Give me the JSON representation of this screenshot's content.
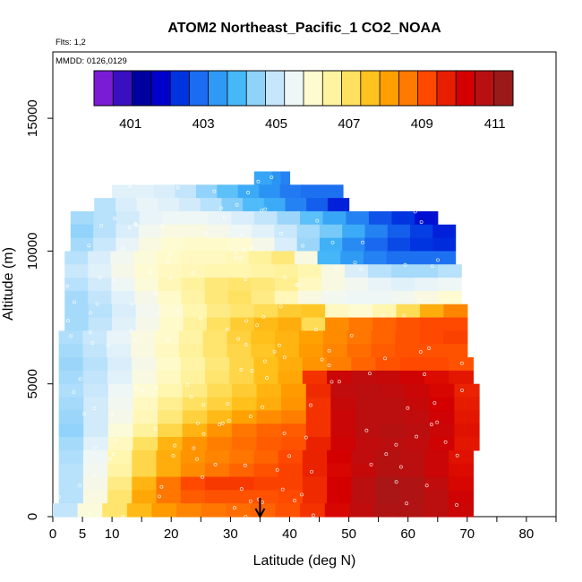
{
  "chart_data": {
    "type": "heatmap",
    "title": "ATOM2 Northeast_Pacific_1 CO2_NOAA",
    "flights_label": "Flts: 1,2",
    "date_label": "MMDD: 0126,0129",
    "xlabel": "Latitude (deg N)",
    "ylabel": "Altitude (m)",
    "xlim": [
      0,
      85
    ],
    "ylim": [
      0,
      17500
    ],
    "x_ticks": [
      0,
      5,
      10,
      20,
      30,
      40,
      50,
      60,
      70,
      80
    ],
    "y_ticks": [
      0,
      5000,
      10000,
      15000
    ],
    "colorbar": {
      "min": 400,
      "max": 411.5,
      "tick_values": [
        401,
        403,
        405,
        407,
        409,
        411
      ],
      "colors": [
        "#7a1bd6",
        "#3a0fc0",
        "#0000a0",
        "#0000cc",
        "#0033e0",
        "#1b6cf0",
        "#2e9af5",
        "#46b8f8",
        "#8fd2fa",
        "#c5e6fb",
        "#eef6f8",
        "#fffbd0",
        "#fff3a0",
        "#ffe060",
        "#ffc21e",
        "#ffa000",
        "#ff7a00",
        "#ff4800",
        "#e81e00",
        "#d40000",
        "#b81010",
        "#9a1a1a"
      ]
    },
    "legend": "top",
    "grid": false,
    "arrow_marker_latitude": 35,
    "band_unit_m": 500,
    "layers": [
      {
        "alt_lo": 12500,
        "alt_hi": 13000,
        "lat_lo": 34,
        "lat_hi": 40,
        "v": [
          403.5,
          403.5,
          403.2,
          403.0
        ]
      },
      {
        "alt_lo": 12000,
        "alt_hi": 12500,
        "lat_lo": 10,
        "lat_hi": 49,
        "v": [
          405.3,
          405.3,
          405.2,
          404.9,
          404.4,
          404.0,
          403.6,
          403.2,
          402.9,
          402.8,
          402.8
        ]
      },
      {
        "alt_lo": 11500,
        "alt_hi": 12000,
        "lat_lo": 7,
        "lat_hi": 50,
        "v": [
          404.8,
          405.2,
          405.4,
          405.3,
          405.1,
          404.8,
          404.3,
          403.9,
          403.6,
          403.0,
          402.6,
          402.0
        ]
      },
      {
        "alt_lo": 11000,
        "alt_hi": 11500,
        "lat_lo": 3,
        "lat_hi": 65,
        "v": [
          404.6,
          404.8,
          405.1,
          405.4,
          405.5,
          405.5,
          405.4,
          405.2,
          404.9,
          404.5,
          404.0,
          403.5,
          403.0,
          402.5,
          402.2,
          401.8
        ]
      },
      {
        "alt_lo": 10500,
        "alt_hi": 11000,
        "lat_lo": 3,
        "lat_hi": 68,
        "v": [
          404.4,
          404.8,
          405.2,
          405.6,
          405.8,
          405.8,
          405.7,
          405.5,
          405.3,
          405.0,
          404.6,
          404.2,
          403.6,
          403.0,
          402.6,
          402.3,
          402.0
        ]
      },
      {
        "alt_lo": 10000,
        "alt_hi": 10500,
        "lat_lo": 3,
        "lat_hi": 68,
        "v": [
          404.6,
          405.0,
          405.4,
          405.8,
          406.0,
          406.1,
          406.1,
          406.0,
          405.7,
          405.2,
          404.5,
          403.7,
          403.1,
          402.7,
          402.4,
          402.2,
          402.1
        ]
      },
      {
        "alt_lo": 9500,
        "alt_hi": 10000,
        "lat_lo": 2,
        "lat_hi": 68,
        "v": [
          404.8,
          405.2,
          405.6,
          405.9,
          406.1,
          406.2,
          406.2,
          406.3,
          406.6,
          406.9,
          405.8,
          403.8,
          403.3,
          403.0,
          402.8,
          402.8,
          402.8
        ]
      },
      {
        "alt_lo": 9000,
        "alt_hi": 9500,
        "lat_lo": 2,
        "lat_hi": 69,
        "v": [
          405.0,
          405.3,
          405.7,
          406.0,
          406.2,
          406.3,
          406.4,
          406.4,
          406.5,
          406.6,
          406.4,
          405.8,
          405.2,
          404.8,
          404.6,
          404.6,
          404.8
        ]
      },
      {
        "alt_lo": 8500,
        "alt_hi": 9000,
        "lat_lo": 2,
        "lat_hi": 69,
        "v": [
          404.8,
          405.1,
          405.5,
          405.9,
          406.3,
          406.6,
          406.9,
          407.0,
          406.9,
          406.7,
          406.2,
          405.8,
          405.6,
          405.4,
          405.3,
          405.4,
          405.5
        ]
      },
      {
        "alt_lo": 8000,
        "alt_hi": 8500,
        "lat_lo": 2,
        "lat_hi": 69,
        "v": [
          404.6,
          404.9,
          405.3,
          405.7,
          406.1,
          406.5,
          406.9,
          407.1,
          406.8,
          406.3,
          405.8,
          405.6,
          405.5,
          405.5,
          405.6,
          405.8,
          406.0
        ]
      },
      {
        "alt_lo": 7500,
        "alt_hi": 8000,
        "lat_lo": 2,
        "lat_hi": 70,
        "v": [
          404.6,
          404.8,
          405.2,
          405.6,
          406.0,
          406.4,
          406.8,
          407.0,
          407.2,
          407.5,
          407.6,
          406.2,
          406.0,
          406.4,
          407.2,
          408.0,
          408.6
        ]
      },
      {
        "alt_lo": 7000,
        "alt_hi": 7500,
        "lat_lo": 2,
        "lat_hi": 70,
        "v": [
          404.6,
          404.9,
          405.3,
          405.7,
          406.1,
          406.6,
          407.1,
          407.5,
          407.8,
          408.0,
          407.2,
          408.5,
          408.8,
          409.0,
          409.2,
          409.3,
          409.3
        ]
      },
      {
        "alt_lo": 6500,
        "alt_hi": 7000,
        "lat_lo": 1,
        "lat_hi": 70,
        "v": [
          404.7,
          405.0,
          405.4,
          405.8,
          406.1,
          406.5,
          407.0,
          407.4,
          407.7,
          407.9,
          408.2,
          408.5,
          408.8,
          409.0,
          409.2,
          409.3,
          409.4
        ]
      },
      {
        "alt_lo": 6000,
        "alt_hi": 6500,
        "lat_lo": 1,
        "lat_hi": 70,
        "v": [
          404.6,
          404.9,
          405.3,
          405.8,
          406.2,
          406.6,
          407.0,
          407.3,
          407.6,
          407.9,
          408.3,
          408.6,
          408.9,
          409.1,
          409.2,
          409.2,
          409.2
        ]
      },
      {
        "alt_lo": 5500,
        "alt_hi": 6000,
        "lat_lo": 1,
        "lat_hi": 71,
        "v": [
          404.5,
          404.8,
          405.2,
          405.7,
          406.1,
          406.5,
          406.9,
          407.3,
          407.7,
          408.0,
          408.4,
          408.7,
          409.0,
          409.2,
          409.3,
          409.3,
          409.2
        ]
      },
      {
        "alt_lo": 5000,
        "alt_hi": 5500,
        "lat_lo": 1,
        "lat_hi": 71,
        "v": [
          404.6,
          404.9,
          405.3,
          405.8,
          406.2,
          406.6,
          407.0,
          407.3,
          407.7,
          408.1,
          409.6,
          410.6,
          410.8,
          410.7,
          410.5,
          410.2,
          410.0
        ]
      },
      {
        "alt_lo": 4500,
        "alt_hi": 5000,
        "lat_lo": 1,
        "lat_hi": 72,
        "v": [
          404.7,
          405.0,
          405.5,
          406.0,
          406.4,
          406.8,
          407.2,
          407.5,
          407.9,
          408.3,
          409.7,
          410.8,
          410.9,
          410.8,
          410.6,
          410.3,
          409.8
        ]
      },
      {
        "alt_lo": 4000,
        "alt_hi": 4500,
        "lat_lo": 1,
        "lat_hi": 72,
        "v": [
          404.6,
          405.1,
          405.6,
          406.2,
          406.7,
          407.1,
          407.4,
          407.7,
          408.0,
          408.4,
          409.6,
          410.7,
          410.9,
          410.9,
          410.7,
          410.4,
          409.9
        ]
      },
      {
        "alt_lo": 3500,
        "alt_hi": 4000,
        "lat_lo": 1,
        "lat_hi": 72,
        "v": [
          404.5,
          405.1,
          405.7,
          406.3,
          406.9,
          407.4,
          407.8,
          408.2,
          408.5,
          408.7,
          409.6,
          410.6,
          410.9,
          410.9,
          410.8,
          410.5,
          410.0
        ]
      },
      {
        "alt_lo": 3000,
        "alt_hi": 3500,
        "lat_lo": 1,
        "lat_hi": 72,
        "v": [
          404.4,
          405.1,
          405.9,
          406.6,
          407.3,
          407.9,
          408.4,
          408.8,
          409.0,
          409.1,
          409.6,
          410.6,
          410.9,
          411.0,
          410.9,
          410.6,
          410.1
        ]
      },
      {
        "alt_lo": 2500,
        "alt_hi": 3000,
        "lat_lo": 1,
        "lat_hi": 72,
        "v": [
          404.6,
          405.3,
          406.2,
          407.1,
          407.9,
          408.4,
          408.7,
          408.9,
          409.1,
          409.2,
          409.8,
          410.5,
          410.8,
          410.9,
          410.8,
          410.5,
          410.0
        ]
      },
      {
        "alt_lo": 2000,
        "alt_hi": 2500,
        "lat_lo": 1,
        "lat_hi": 71,
        "v": [
          404.7,
          405.5,
          406.4,
          407.3,
          408.0,
          408.4,
          408.6,
          408.8,
          409.0,
          409.3,
          409.8,
          410.4,
          410.8,
          411.0,
          410.9,
          410.6,
          410.1
        ]
      },
      {
        "alt_lo": 1500,
        "alt_hi": 2000,
        "lat_lo": 1,
        "lat_hi": 71,
        "v": [
          404.8,
          405.6,
          406.5,
          407.3,
          408.0,
          408.5,
          408.8,
          409.0,
          409.2,
          409.4,
          409.8,
          410.3,
          410.7,
          411.0,
          410.9,
          410.6,
          410.2
        ]
      },
      {
        "alt_lo": 1000,
        "alt_hi": 1500,
        "lat_lo": 1,
        "lat_hi": 71,
        "v": [
          404.8,
          405.7,
          406.8,
          407.9,
          408.8,
          409.3,
          409.5,
          409.5,
          409.4,
          409.4,
          409.7,
          410.4,
          410.9,
          411.2,
          411.1,
          410.8,
          410.3
        ]
      },
      {
        "alt_lo": 500,
        "alt_hi": 1000,
        "lat_lo": 1,
        "lat_hi": 71,
        "v": [
          404.8,
          405.8,
          407.0,
          408.1,
          408.8,
          409.1,
          409.2,
          409.2,
          409.2,
          409.3,
          409.7,
          410.4,
          410.9,
          411.2,
          411.1,
          410.9,
          410.5
        ]
      },
      {
        "alt_lo": 0,
        "alt_hi": 500,
        "lat_lo": 0,
        "lat_hi": 71,
        "v": [
          404.9,
          405.9,
          407.0,
          407.8,
          408.3,
          408.6,
          408.8,
          408.9,
          409.0,
          409.2,
          409.6,
          410.3,
          410.8,
          411.1,
          411.1,
          410.9,
          410.6
        ]
      }
    ]
  }
}
